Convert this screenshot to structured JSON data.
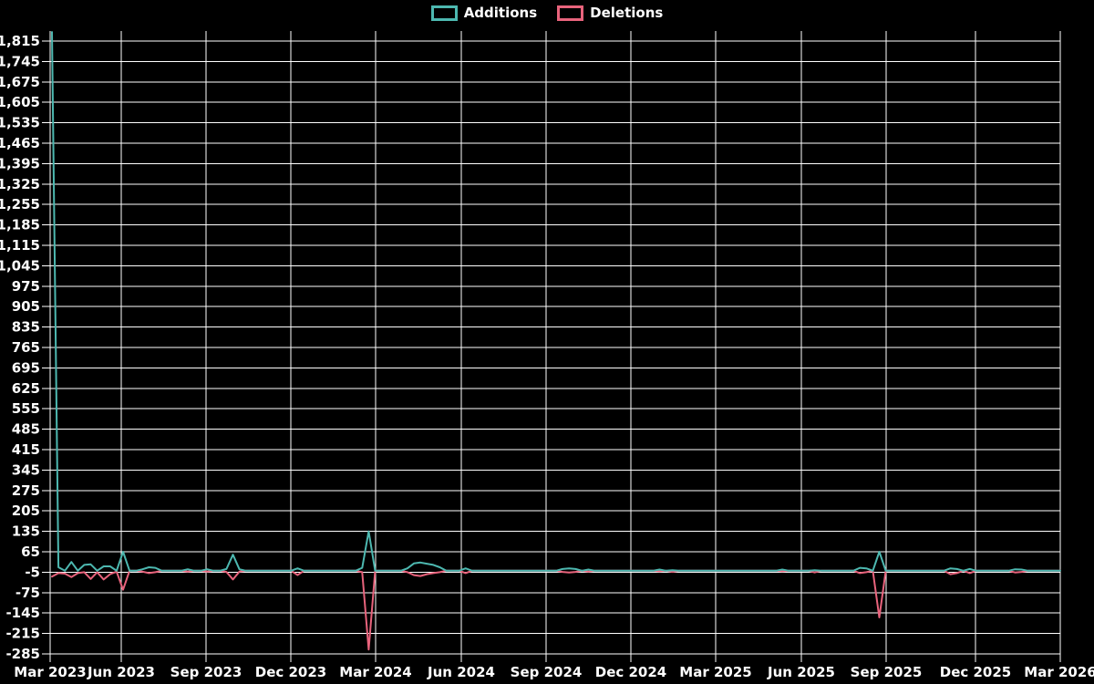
{
  "page": {
    "background_color": "#000000",
    "grid_color": "#ffffff",
    "text_color": "#ffffff"
  },
  "chart_data": {
    "type": "line",
    "title": "",
    "legend_position": "top-center",
    "grid": true,
    "x_axis": {
      "tick_labels": [
        "Mar 2023",
        "Jun 2023",
        "Sep 2023",
        "Dec 2023",
        "Mar 2024",
        "Jun 2024",
        "Sep 2024",
        "Dec 2024",
        "Mar 2025",
        "Jun 2025",
        "Sep 2025",
        "Dec 2025",
        "Mar 2026"
      ]
    },
    "y_axis": {
      "tick_labels": [
        "1,815",
        "1,745",
        "1,675",
        "1,605",
        "1,535",
        "1,465",
        "1,395",
        "1,325",
        "1,255",
        "1,185",
        "1,115",
        "1,045",
        "975",
        "905",
        "835",
        "765",
        "695",
        "625",
        "555",
        "485",
        "415",
        "345",
        "275",
        "205",
        "135",
        "65",
        "-5",
        "-75",
        "-145",
        "-215",
        "-285"
      ],
      "tick_values": [
        1815,
        1745,
        1675,
        1605,
        1535,
        1465,
        1395,
        1325,
        1255,
        1185,
        1115,
        1045,
        975,
        905,
        835,
        765,
        695,
        625,
        555,
        485,
        415,
        345,
        275,
        205,
        135,
        65,
        -5,
        -75,
        -145,
        -215,
        -285
      ],
      "min": -285,
      "max": 1850,
      "step": 70
    },
    "weeks_total": 157,
    "baseline_value": 0,
    "series": [
      {
        "name": "Additions",
        "color": "#4db8b0",
        "default_value": 0,
        "points": [
          [
            0,
            1846
          ],
          [
            1,
            12
          ],
          [
            2,
            0
          ],
          [
            3,
            30
          ],
          [
            4,
            0
          ],
          [
            5,
            20
          ],
          [
            6,
            22
          ],
          [
            7,
            0
          ],
          [
            8,
            15
          ],
          [
            9,
            15
          ],
          [
            10,
            0
          ],
          [
            11,
            65
          ],
          [
            12,
            0
          ],
          [
            14,
            5
          ],
          [
            15,
            12
          ],
          [
            16,
            10
          ],
          [
            17,
            0
          ],
          [
            21,
            5
          ],
          [
            24,
            5
          ],
          [
            27,
            6
          ],
          [
            28,
            55
          ],
          [
            29,
            5
          ],
          [
            38,
            8
          ],
          [
            48,
            10
          ],
          [
            49,
            135
          ],
          [
            50,
            0
          ],
          [
            55,
            8
          ],
          [
            56,
            25
          ],
          [
            57,
            28
          ],
          [
            58,
            24
          ],
          [
            59,
            20
          ],
          [
            60,
            12
          ],
          [
            61,
            0
          ],
          [
            64,
            8
          ],
          [
            79,
            6
          ],
          [
            80,
            8
          ],
          [
            81,
            6
          ],
          [
            83,
            4
          ],
          [
            94,
            4
          ],
          [
            96,
            2
          ],
          [
            113,
            4
          ],
          [
            118,
            2
          ],
          [
            125,
            10
          ],
          [
            126,
            8
          ],
          [
            128,
            65
          ],
          [
            129,
            0
          ],
          [
            139,
            8
          ],
          [
            140,
            6
          ],
          [
            142,
            6
          ],
          [
            149,
            5
          ],
          [
            150,
            4
          ],
          [
            156,
            0
          ]
        ]
      },
      {
        "name": "Deletions",
        "color": "#e8637c",
        "default_value": 0,
        "points": [
          [
            0,
            -20
          ],
          [
            1,
            -8
          ],
          [
            2,
            -10
          ],
          [
            3,
            -22
          ],
          [
            4,
            -8
          ],
          [
            5,
            -5
          ],
          [
            6,
            -28
          ],
          [
            7,
            -5
          ],
          [
            8,
            -30
          ],
          [
            9,
            -12
          ],
          [
            10,
            -3
          ],
          [
            11,
            -65
          ],
          [
            12,
            0
          ],
          [
            14,
            -3
          ],
          [
            15,
            -8
          ],
          [
            16,
            -5
          ],
          [
            17,
            0
          ],
          [
            21,
            -3
          ],
          [
            24,
            -3
          ],
          [
            27,
            -4
          ],
          [
            28,
            -30
          ],
          [
            29,
            -3
          ],
          [
            38,
            -15
          ],
          [
            48,
            -5
          ],
          [
            49,
            -270
          ],
          [
            50,
            0
          ],
          [
            55,
            -5
          ],
          [
            56,
            -15
          ],
          [
            57,
            -18
          ],
          [
            58,
            -12
          ],
          [
            59,
            -8
          ],
          [
            60,
            -5
          ],
          [
            61,
            0
          ],
          [
            64,
            -8
          ],
          [
            79,
            -4
          ],
          [
            80,
            -6
          ],
          [
            81,
            -4
          ],
          [
            83,
            -3
          ],
          [
            94,
            -2
          ],
          [
            96,
            -4
          ],
          [
            113,
            -2
          ],
          [
            118,
            -6
          ],
          [
            125,
            -8
          ],
          [
            126,
            -5
          ],
          [
            128,
            -160
          ],
          [
            129,
            0
          ],
          [
            139,
            -12
          ],
          [
            140,
            -8
          ],
          [
            142,
            -8
          ],
          [
            149,
            -6
          ],
          [
            150,
            -4
          ],
          [
            156,
            0
          ]
        ]
      }
    ]
  }
}
